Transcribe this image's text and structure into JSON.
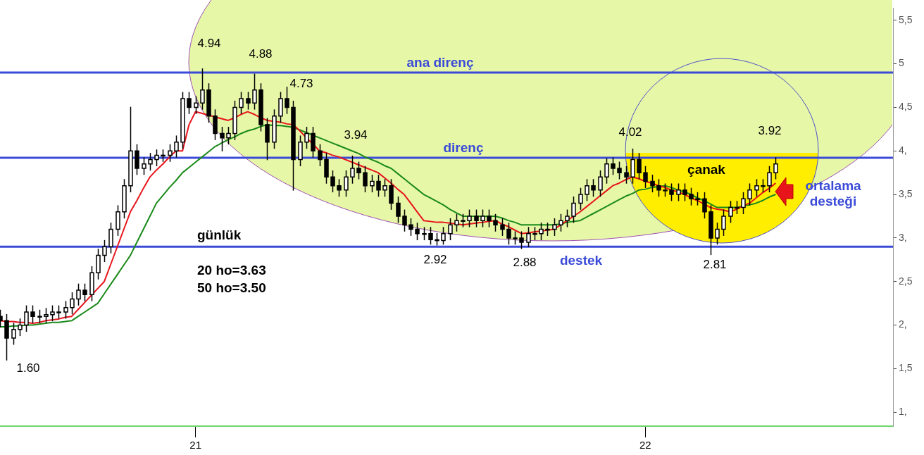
{
  "chart_data": {
    "type": "candlestick",
    "title": "günlük",
    "categories": [
      null,
      null,
      null,
      null,
      null,
      null,
      null,
      null,
      null,
      null,
      null,
      null,
      null,
      null,
      null,
      null,
      null,
      null,
      null,
      null,
      null,
      null,
      null,
      null,
      null,
      null,
      null,
      null,
      null,
      null,
      "21",
      null,
      null,
      null,
      null,
      null,
      null,
      null,
      null,
      null,
      null,
      null,
      null,
      null,
      null,
      null,
      null,
      null,
      null,
      null,
      null,
      null,
      null,
      null,
      null,
      null,
      null,
      null,
      null,
      null,
      null,
      null,
      null,
      null,
      null,
      null,
      null,
      null,
      null,
      null,
      null,
      null,
      null,
      null,
      null,
      null,
      null,
      null,
      null,
      null,
      null,
      null,
      null,
      null,
      null,
      null,
      null,
      null,
      null,
      null,
      null,
      null,
      null,
      null,
      null,
      null,
      null,
      null,
      null,
      "22",
      null,
      null,
      null,
      null,
      null,
      null,
      null,
      null,
      null,
      null,
      null,
      null,
      null,
      null,
      null,
      null,
      null,
      null,
      null,
      null
    ],
    "ohlc": [
      [
        2.1,
        2.17,
        1.98,
        2.05
      ],
      [
        2.05,
        2.12,
        1.6,
        1.85
      ],
      [
        1.85,
        2.02,
        1.78,
        1.95
      ],
      [
        1.95,
        2.07,
        1.88,
        2.0
      ],
      [
        2.0,
        2.22,
        1.93,
        2.15
      ],
      [
        2.15,
        2.22,
        2.03,
        2.1
      ],
      [
        2.1,
        2.17,
        2.03,
        2.1
      ],
      [
        2.1,
        2.19,
        2.03,
        2.12
      ],
      [
        2.12,
        2.22,
        2.05,
        2.15
      ],
      [
        2.15,
        2.22,
        2.08,
        2.15
      ],
      [
        2.15,
        2.27,
        2.08,
        2.2
      ],
      [
        2.2,
        2.37,
        2.13,
        2.3
      ],
      [
        2.3,
        2.47,
        2.23,
        2.4
      ],
      [
        2.4,
        2.47,
        2.28,
        2.35
      ],
      [
        2.35,
        2.67,
        2.28,
        2.6
      ],
      [
        2.6,
        2.87,
        2.53,
        2.8
      ],
      [
        2.8,
        2.97,
        2.73,
        2.9
      ],
      [
        2.9,
        3.17,
        2.83,
        3.1
      ],
      [
        3.1,
        3.37,
        3.03,
        3.3
      ],
      [
        3.3,
        3.67,
        3.23,
        3.6
      ],
      [
        3.6,
        4.5,
        3.53,
        4.0
      ],
      [
        4.0,
        4.07,
        3.73,
        3.8
      ],
      [
        3.8,
        3.92,
        3.73,
        3.85
      ],
      [
        3.85,
        3.97,
        3.78,
        3.9
      ],
      [
        3.9,
        4.01,
        3.83,
        3.95
      ],
      [
        3.95,
        4.01,
        3.88,
        3.95
      ],
      [
        3.95,
        4.07,
        3.88,
        4.0
      ],
      [
        4.0,
        4.17,
        3.93,
        4.1
      ],
      [
        4.1,
        4.67,
        4.03,
        4.6
      ],
      [
        4.6,
        4.67,
        4.43,
        4.5
      ],
      [
        4.5,
        4.62,
        4.43,
        4.55
      ],
      [
        4.55,
        4.94,
        4.48,
        4.7
      ],
      [
        4.7,
        4.77,
        4.33,
        4.4
      ],
      [
        4.4,
        4.47,
        4.13,
        4.2
      ],
      [
        4.2,
        4.27,
        4.0,
        4.15
      ],
      [
        4.15,
        4.27,
        4.08,
        4.2
      ],
      [
        4.2,
        4.57,
        4.13,
        4.5
      ],
      [
        4.5,
        4.67,
        4.43,
        4.6
      ],
      [
        4.6,
        4.67,
        4.48,
        4.55
      ],
      [
        4.55,
        4.88,
        4.48,
        4.7
      ],
      [
        4.7,
        4.77,
        4.23,
        4.3
      ],
      [
        4.3,
        4.37,
        3.9,
        4.1
      ],
      [
        4.1,
        4.47,
        4.03,
        4.4
      ],
      [
        4.4,
        4.67,
        4.33,
        4.6
      ],
      [
        4.6,
        4.73,
        4.43,
        4.5
      ],
      [
        4.5,
        4.57,
        3.55,
        3.9
      ],
      [
        3.9,
        4.17,
        3.83,
        4.1
      ],
      [
        4.1,
        4.27,
        4.03,
        4.2
      ],
      [
        4.2,
        4.27,
        3.93,
        4.0
      ],
      [
        4.0,
        4.07,
        3.83,
        3.9
      ],
      [
        3.9,
        3.97,
        3.63,
        3.7
      ],
      [
        3.7,
        3.77,
        3.53,
        3.6
      ],
      [
        3.6,
        3.67,
        3.48,
        3.55
      ],
      [
        3.55,
        3.77,
        3.48,
        3.7
      ],
      [
        3.7,
        3.94,
        3.63,
        3.8
      ],
      [
        3.8,
        3.87,
        3.68,
        3.75
      ],
      [
        3.75,
        3.82,
        3.53,
        3.6
      ],
      [
        3.6,
        3.72,
        3.53,
        3.65
      ],
      [
        3.65,
        3.72,
        3.48,
        3.55
      ],
      [
        3.55,
        3.67,
        3.48,
        3.6
      ],
      [
        3.6,
        3.67,
        3.33,
        3.4
      ],
      [
        3.4,
        3.47,
        3.18,
        3.25
      ],
      [
        3.25,
        3.32,
        3.08,
        3.15
      ],
      [
        3.15,
        3.22,
        3.03,
        3.1
      ],
      [
        3.1,
        3.17,
        2.98,
        3.05
      ],
      [
        3.05,
        3.12,
        2.98,
        3.05
      ],
      [
        3.05,
        3.12,
        2.93,
        2.98
      ],
      [
        2.98,
        3.05,
        2.92,
        2.97
      ],
      [
        2.97,
        3.12,
        2.93,
        3.05
      ],
      [
        3.05,
        3.22,
        2.98,
        3.15
      ],
      [
        3.15,
        3.27,
        3.08,
        3.2
      ],
      [
        3.2,
        3.27,
        3.13,
        3.2
      ],
      [
        3.2,
        3.32,
        3.13,
        3.25
      ],
      [
        3.25,
        3.32,
        3.13,
        3.2
      ],
      [
        3.2,
        3.32,
        3.13,
        3.25
      ],
      [
        3.25,
        3.32,
        3.13,
        3.2
      ],
      [
        3.2,
        3.27,
        3.08,
        3.15
      ],
      [
        3.15,
        3.22,
        3.03,
        3.1
      ],
      [
        3.1,
        3.17,
        2.93,
        3.0
      ],
      [
        3.0,
        3.07,
        2.93,
        3.0
      ],
      [
        3.0,
        3.07,
        2.88,
        2.95
      ],
      [
        2.95,
        3.12,
        2.9,
        3.05
      ],
      [
        3.05,
        3.12,
        2.98,
        3.05
      ],
      [
        3.05,
        3.17,
        2.98,
        3.1
      ],
      [
        3.1,
        3.17,
        3.03,
        3.1
      ],
      [
        3.1,
        3.22,
        3.03,
        3.15
      ],
      [
        3.15,
        3.27,
        3.08,
        3.2
      ],
      [
        3.2,
        3.32,
        3.13,
        3.25
      ],
      [
        3.25,
        3.47,
        3.18,
        3.4
      ],
      [
        3.4,
        3.57,
        3.33,
        3.5
      ],
      [
        3.5,
        3.67,
        3.43,
        3.6
      ],
      [
        3.6,
        3.67,
        3.48,
        3.55
      ],
      [
        3.55,
        3.77,
        3.48,
        3.7
      ],
      [
        3.7,
        3.91,
        3.63,
        3.85
      ],
      [
        3.85,
        3.92,
        3.73,
        3.8
      ],
      [
        3.8,
        3.87,
        3.68,
        3.75
      ],
      [
        3.75,
        3.82,
        3.63,
        3.7
      ],
      [
        3.7,
        4.02,
        3.63,
        3.9
      ],
      [
        3.9,
        3.97,
        3.68,
        3.75
      ],
      [
        3.75,
        3.82,
        3.58,
        3.65
      ],
      [
        3.65,
        3.72,
        3.53,
        3.6
      ],
      [
        3.6,
        3.67,
        3.48,
        3.55
      ],
      [
        3.55,
        3.62,
        3.48,
        3.55
      ],
      [
        3.55,
        3.62,
        3.43,
        3.5
      ],
      [
        3.5,
        3.62,
        3.43,
        3.55
      ],
      [
        3.55,
        3.62,
        3.43,
        3.5
      ],
      [
        3.5,
        3.57,
        3.38,
        3.45
      ],
      [
        3.45,
        3.52,
        3.38,
        3.45
      ],
      [
        3.45,
        3.52,
        3.23,
        3.3
      ],
      [
        3.3,
        3.37,
        2.81,
        3.0
      ],
      [
        3.0,
        3.17,
        2.93,
        3.1
      ],
      [
        3.1,
        3.32,
        3.03,
        3.25
      ],
      [
        3.25,
        3.42,
        3.18,
        3.35
      ],
      [
        3.35,
        3.42,
        3.28,
        3.35
      ],
      [
        3.35,
        3.52,
        3.28,
        3.45
      ],
      [
        3.45,
        3.62,
        3.38,
        3.55
      ],
      [
        3.55,
        3.67,
        3.48,
        3.6
      ],
      [
        3.6,
        3.67,
        3.53,
        3.6
      ],
      [
        3.6,
        3.82,
        3.53,
        3.75
      ],
      [
        3.75,
        3.92,
        3.68,
        3.85
      ]
    ],
    "series": [
      {
        "type": "line",
        "color": "#e8141c",
        "values": [
          2.05,
          2.04,
          2.04,
          2.03,
          2.03,
          2.02,
          2.03,
          2.05,
          2.06,
          2.07,
          2.09,
          2.1,
          2.18,
          2.26,
          2.34,
          2.42,
          2.5,
          2.7,
          2.9,
          3.1,
          3.3,
          3.43,
          3.57,
          3.7,
          3.78,
          3.85,
          3.93,
          4.0,
          4.0,
          4.3,
          4.45,
          4.43,
          4.41,
          4.39,
          4.37,
          4.35,
          4.38,
          4.42,
          4.45,
          4.42,
          4.38,
          4.35,
          4.34,
          4.33,
          4.31,
          4.3,
          4.23,
          4.15,
          4.08,
          4.0,
          3.98,
          3.95,
          3.93,
          3.9,
          3.87,
          3.84,
          3.81,
          3.78,
          3.75,
          3.69,
          3.63,
          3.56,
          3.5,
          3.4,
          3.3,
          3.2,
          3.19,
          3.18,
          3.18,
          3.17,
          3.16,
          3.15,
          3.16,
          3.17,
          3.18,
          3.19,
          3.2,
          3.16,
          3.13,
          3.09,
          3.05,
          3.06,
          3.07,
          3.08,
          3.09,
          3.1,
          3.15,
          3.2,
          3.25,
          3.3,
          3.36,
          3.42,
          3.48,
          3.54,
          3.6,
          3.63,
          3.67,
          3.7,
          3.68,
          3.65,
          3.63,
          3.6,
          3.58,
          3.55,
          3.53,
          3.5,
          3.46,
          3.43,
          3.39,
          3.35,
          3.33,
          3.32,
          3.3,
          3.33,
          3.37,
          3.4,
          3.46,
          3.52,
          3.57,
          3.63
        ]
      },
      {
        "type": "line",
        "color": "#1a8a1a",
        "values": [
          1.98,
          1.98,
          1.99,
          1.99,
          2.0,
          2.0,
          2.01,
          2.02,
          2.03,
          2.03,
          2.04,
          2.05,
          2.1,
          2.15,
          2.2,
          2.25,
          2.36,
          2.47,
          2.58,
          2.69,
          2.8,
          2.95,
          3.1,
          3.25,
          3.4,
          3.49,
          3.58,
          3.66,
          3.75,
          3.81,
          3.87,
          3.93,
          3.99,
          4.05,
          4.09,
          4.13,
          4.16,
          4.2,
          4.23,
          4.25,
          4.28,
          4.3,
          4.29,
          4.29,
          4.28,
          4.27,
          4.24,
          4.21,
          4.18,
          4.15,
          4.12,
          4.09,
          4.06,
          4.03,
          4.0,
          3.97,
          3.93,
          3.9,
          3.87,
          3.83,
          3.8,
          3.74,
          3.68,
          3.62,
          3.56,
          3.5,
          3.46,
          3.42,
          3.38,
          3.33,
          3.29,
          3.25,
          3.25,
          3.25,
          3.25,
          3.25,
          3.25,
          3.23,
          3.2,
          3.18,
          3.15,
          3.15,
          3.15,
          3.15,
          3.15,
          3.15,
          3.16,
          3.18,
          3.19,
          3.2,
          3.24,
          3.28,
          3.32,
          3.36,
          3.4,
          3.44,
          3.48,
          3.51,
          3.55,
          3.56,
          3.58,
          3.59,
          3.6,
          3.58,
          3.55,
          3.53,
          3.5,
          3.46,
          3.43,
          3.39,
          3.35,
          3.35,
          3.35,
          3.35,
          3.37,
          3.38,
          3.4,
          3.43,
          3.47,
          3.5
        ]
      }
    ],
    "ylim": [
      0.84,
      5.64
    ],
    "yticks": [
      {
        "value": 1,
        "label": "1,"
      },
      {
        "value": 1.5,
        "label": "1,5"
      },
      {
        "value": 2,
        "label": "2,"
      },
      {
        "value": 2.5,
        "label": "2,5"
      },
      {
        "value": 3,
        "label": "3,"
      },
      {
        "value": 3.5,
        "label": "3,5"
      },
      {
        "value": 4,
        "label": "4,"
      },
      {
        "value": 4.5,
        "label": "4,5"
      },
      {
        "value": 5,
        "label": "5"
      },
      {
        "value": 5.5,
        "label": "5,5"
      }
    ],
    "ref_lines": [
      {
        "axis": "y",
        "value": 4.9,
        "label": "ana direnç",
        "color": "#3b4bd8"
      },
      {
        "axis": "y",
        "value": 3.92,
        "label": "direnç",
        "color": "#3b4bd8"
      },
      {
        "axis": "y",
        "value": 2.9,
        "label": "destek",
        "color": "#3b4bd8"
      }
    ],
    "annotations": [
      "4.94",
      "4.88",
      "4.73",
      "3.94",
      "4.02",
      "3.92",
      "1.60",
      "2.92",
      "2.88",
      "2.81",
      "çanak",
      "ortalama desteği",
      "20 ho=3.63",
      "50 ho=3.50"
    ]
  }
}
